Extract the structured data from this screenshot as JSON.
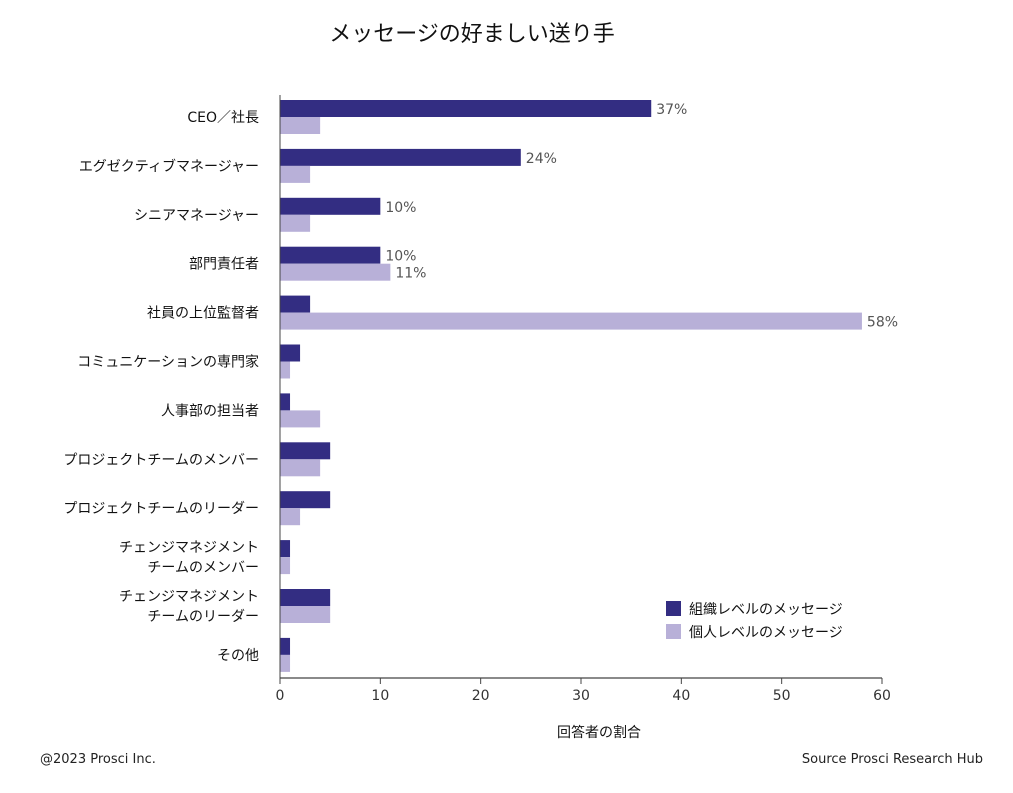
{
  "chart_data": {
    "type": "bar",
    "orientation": "horizontal",
    "title": "メッセージの好ましい送り手",
    "xlabel": "回答者の割合",
    "ylabel": "",
    "xlim": [
      0,
      60
    ],
    "xticks": [
      0,
      10,
      20,
      30,
      40,
      50,
      60
    ],
    "grid": false,
    "legend_position": "bottom-right",
    "categories": [
      [
        "CEO／社長"
      ],
      [
        "エグゼクティブマネージャー"
      ],
      [
        "シニアマネージャー"
      ],
      [
        "部門責任者"
      ],
      [
        "社員の上位監督者"
      ],
      [
        "コミュニケーションの専門家"
      ],
      [
        "人事部の担当者"
      ],
      [
        "プロジェクトチームのメンバー"
      ],
      [
        "プロジェクトチームのリーダー"
      ],
      [
        "チェンジマネジメント",
        "チームのメンバー"
      ],
      [
        "チェンジマネジメント",
        "チームのリーダー"
      ],
      [
        "その他"
      ]
    ],
    "series": [
      {
        "name": "組織レベルのメッセージ",
        "color": "#332d82",
        "values": [
          37,
          24,
          10,
          10,
          3,
          2,
          1,
          5,
          5,
          1,
          5,
          1
        ],
        "labels": [
          "37%",
          "24%",
          "10%",
          "10%",
          "",
          "",
          "",
          "",
          "",
          "",
          "",
          ""
        ]
      },
      {
        "name": "個人レベルのメッセージ",
        "color": "#b8b0d8",
        "values": [
          4,
          3,
          3,
          11,
          58,
          1,
          4,
          4,
          2,
          1,
          5,
          1
        ],
        "labels": [
          "",
          "",
          "",
          "11%",
          "58%",
          "",
          "",
          "",
          "",
          "",
          "",
          ""
        ]
      }
    ]
  },
  "footer": {
    "copyright": "@2023 Prosci Inc.",
    "source": "Source Prosci Research Hub"
  }
}
